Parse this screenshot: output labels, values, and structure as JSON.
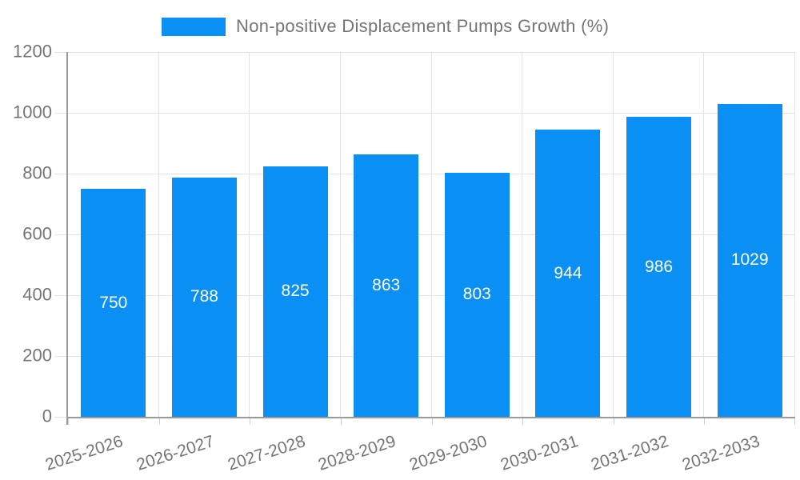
{
  "legend": {
    "label": "Non-positive Displacement Pumps Growth (%)"
  },
  "chart_data": {
    "type": "bar",
    "title": "Non-positive Displacement Pumps Growth (%)",
    "categories": [
      "2025-2026",
      "2026-2027",
      "2027-2028",
      "2028-2029",
      "2029-2030",
      "2030-2031",
      "2031-2032",
      "2032-2033"
    ],
    "series": [
      {
        "name": "Non-positive Displacement Pumps Growth (%)",
        "values": [
          750,
          788,
          825,
          863,
          803,
          944,
          986,
          1029
        ]
      }
    ],
    "xlabel": "",
    "ylabel": "",
    "ylim": [
      0,
      1200
    ],
    "yticks": [
      0,
      200,
      400,
      600,
      800,
      1000,
      1200
    ],
    "grid": true,
    "legend_position": "top",
    "value_label_position": "inside-center",
    "x_label_rotation_deg": -18
  },
  "colors": {
    "bar": "#0a90f4",
    "axis_text": "#757575",
    "value_text": "#ffffff",
    "axis_line": "#9a9a9a",
    "gridline": "#e3e3e3",
    "tick": "#cfcfcf",
    "background": "#ffffff"
  }
}
